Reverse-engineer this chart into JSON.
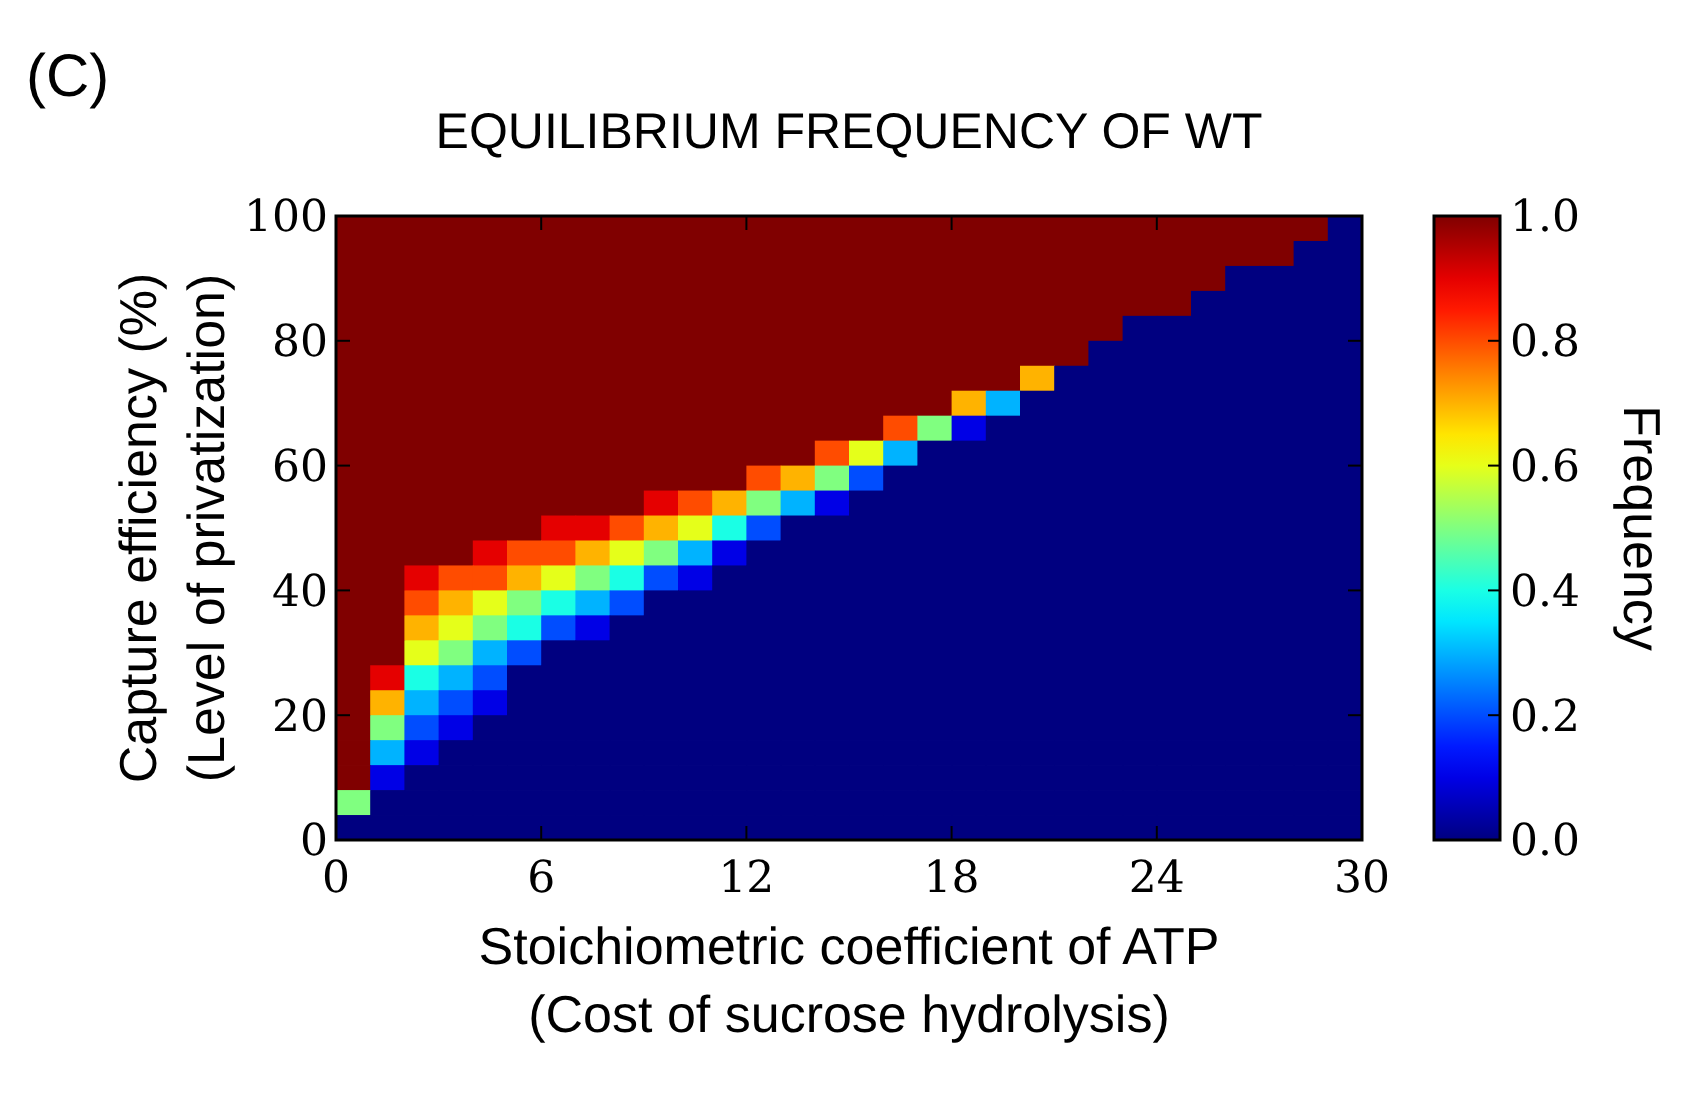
{
  "chart_data": {
    "type": "heatmap",
    "title": "EQUILIBRIUM FREQUENCY OF WT",
    "xlabel": "Stoichiometric coefficient of ATP\n(Cost of sucrose hydrolysis)",
    "ylabel": "Capture efficiency (%)\n(Level of privatization)",
    "clabel": "Frequency",
    "annotations": [
      "(C)"
    ],
    "x": [
      0.5,
      1.5,
      2.5,
      3.5,
      4.5,
      5.5,
      6.5,
      7.5,
      8.5,
      9.5,
      10.5,
      11.5,
      12.5,
      13.5,
      14.5,
      15.5,
      16.5,
      17.5,
      18.5,
      19.5,
      20.5,
      21.5,
      22.5,
      23.5,
      24.5,
      25.5,
      26.5,
      27.5,
      28.5,
      29.5
    ],
    "y": [
      98,
      94,
      90,
      86,
      82,
      78,
      74,
      70,
      66,
      62,
      58,
      54,
      50,
      46,
      42,
      38,
      34,
      30,
      26,
      22,
      18,
      14,
      10,
      6,
      2
    ],
    "xlim": [
      0,
      30
    ],
    "xticks": [
      0,
      6,
      12,
      18,
      24,
      30
    ],
    "ylim": [
      0,
      100
    ],
    "yticks": [
      0,
      20,
      40,
      60,
      80,
      100
    ],
    "clim": [
      0,
      1
    ],
    "cticks": [
      {
        "value": 0,
        "label": "0.0"
      },
      {
        "value": 0.2,
        "label": "0.2"
      },
      {
        "value": 0.4,
        "label": "0.4"
      },
      {
        "value": 0.6,
        "label": "0.6"
      },
      {
        "value": 0.8,
        "label": "0.8"
      },
      {
        "value": 1,
        "label": "1.0"
      }
    ],
    "cells": [
      [
        1,
        1,
        1,
        1,
        1,
        1,
        1,
        1,
        1,
        1,
        1,
        1,
        1,
        1,
        1,
        1,
        1,
        1,
        1,
        1,
        1,
        1,
        1,
        1,
        1,
        1,
        1,
        1,
        1,
        0
      ],
      [
        1,
        1,
        1,
        1,
        1,
        1,
        1,
        1,
        1,
        1,
        1,
        1,
        1,
        1,
        1,
        1,
        1,
        1,
        1,
        1,
        1,
        1,
        1,
        1,
        1,
        1,
        1,
        1,
        0,
        0
      ],
      [
        1,
        1,
        1,
        1,
        1,
        1,
        1,
        1,
        1,
        1,
        1,
        1,
        1,
        1,
        1,
        1,
        1,
        1,
        1,
        1,
        1,
        1,
        1,
        1,
        1,
        1,
        0,
        0,
        0,
        0
      ],
      [
        1,
        1,
        1,
        1,
        1,
        1,
        1,
        1,
        1,
        1,
        1,
        1,
        1,
        1,
        1,
        1,
        1,
        1,
        1,
        1,
        1,
        1,
        1,
        1,
        1,
        0,
        0,
        0,
        0,
        0
      ],
      [
        1,
        1,
        1,
        1,
        1,
        1,
        1,
        1,
        1,
        1,
        1,
        1,
        1,
        1,
        1,
        1,
        1,
        1,
        1,
        1,
        1,
        1,
        1,
        0,
        0,
        0,
        0,
        0,
        0,
        0
      ],
      [
        1,
        1,
        1,
        1,
        1,
        1,
        1,
        1,
        1,
        1,
        1,
        1,
        1,
        1,
        1,
        1,
        1,
        1,
        1,
        1,
        1,
        1,
        0,
        0,
        0,
        0,
        0,
        0,
        0,
        0
      ],
      [
        1,
        1,
        1,
        1,
        1,
        1,
        1,
        1,
        1,
        1,
        1,
        1,
        1,
        1,
        1,
        1,
        1,
        1,
        1,
        1,
        0.7,
        0,
        0,
        0,
        0,
        0,
        0,
        0,
        0,
        0
      ],
      [
        1,
        1,
        1,
        1,
        1,
        1,
        1,
        1,
        1,
        1,
        1,
        1,
        1,
        1,
        1,
        1,
        1,
        1,
        0.7,
        0.3,
        0,
        0,
        0,
        0,
        0,
        0,
        0,
        0,
        0,
        0
      ],
      [
        1,
        1,
        1,
        1,
        1,
        1,
        1,
        1,
        1,
        1,
        1,
        1,
        1,
        1,
        1,
        1,
        0.8,
        0.5,
        0.1,
        0,
        0,
        0,
        0,
        0,
        0,
        0,
        0,
        0,
        0,
        0
      ],
      [
        1,
        1,
        1,
        1,
        1,
        1,
        1,
        1,
        1,
        1,
        1,
        1,
        1,
        1,
        0.8,
        0.6,
        0.3,
        0,
        0,
        0,
        0,
        0,
        0,
        0,
        0,
        0,
        0,
        0,
        0,
        0
      ],
      [
        1,
        1,
        1,
        1,
        1,
        1,
        1,
        1,
        1,
        1,
        1,
        1,
        0.8,
        0.7,
        0.5,
        0.2,
        0,
        0,
        0,
        0,
        0,
        0,
        0,
        0,
        0,
        0,
        0,
        0,
        0,
        0
      ],
      [
        1,
        1,
        1,
        1,
        1,
        1,
        1,
        1,
        1,
        0.9,
        0.8,
        0.7,
        0.5,
        0.3,
        0.1,
        0,
        0,
        0,
        0,
        0,
        0,
        0,
        0,
        0,
        0,
        0,
        0,
        0,
        0,
        0
      ],
      [
        1,
        1,
        1,
        1,
        1,
        1,
        0.9,
        0.9,
        0.8,
        0.7,
        0.6,
        0.4,
        0.2,
        0,
        0,
        0,
        0,
        0,
        0,
        0,
        0,
        0,
        0,
        0,
        0,
        0,
        0,
        0,
        0,
        0
      ],
      [
        1,
        1,
        1,
        1,
        0.9,
        0.8,
        0.8,
        0.7,
        0.6,
        0.5,
        0.3,
        0.1,
        0,
        0,
        0,
        0,
        0,
        0,
        0,
        0,
        0,
        0,
        0,
        0,
        0,
        0,
        0,
        0,
        0,
        0
      ],
      [
        1,
        1,
        0.9,
        0.8,
        0.8,
        0.7,
        0.6,
        0.5,
        0.4,
        0.2,
        0.1,
        0,
        0,
        0,
        0,
        0,
        0,
        0,
        0,
        0,
        0,
        0,
        0,
        0,
        0,
        0,
        0,
        0,
        0,
        0
      ],
      [
        1,
        1,
        0.8,
        0.7,
        0.6,
        0.5,
        0.4,
        0.3,
        0.2,
        0,
        0,
        0,
        0,
        0,
        0,
        0,
        0,
        0,
        0,
        0,
        0,
        0,
        0,
        0,
        0,
        0,
        0,
        0,
        0,
        0
      ],
      [
        1,
        1,
        0.7,
        0.6,
        0.5,
        0.4,
        0.2,
        0.1,
        0,
        0,
        0,
        0,
        0,
        0,
        0,
        0,
        0,
        0,
        0,
        0,
        0,
        0,
        0,
        0,
        0,
        0,
        0,
        0,
        0,
        0
      ],
      [
        1,
        1,
        0.6,
        0.5,
        0.3,
        0.2,
        0,
        0,
        0,
        0,
        0,
        0,
        0,
        0,
        0,
        0,
        0,
        0,
        0,
        0,
        0,
        0,
        0,
        0,
        0,
        0,
        0,
        0,
        0,
        0
      ],
      [
        1,
        0.9,
        0.4,
        0.3,
        0.2,
        0,
        0,
        0,
        0,
        0,
        0,
        0,
        0,
        0,
        0,
        0,
        0,
        0,
        0,
        0,
        0,
        0,
        0,
        0,
        0,
        0,
        0,
        0,
        0,
        0
      ],
      [
        1,
        0.7,
        0.3,
        0.2,
        0.1,
        0,
        0,
        0,
        0,
        0,
        0,
        0,
        0,
        0,
        0,
        0,
        0,
        0,
        0,
        0,
        0,
        0,
        0,
        0,
        0,
        0,
        0,
        0,
        0,
        0
      ],
      [
        1,
        0.5,
        0.2,
        0.1,
        0,
        0,
        0,
        0,
        0,
        0,
        0,
        0,
        0,
        0,
        0,
        0,
        0,
        0,
        0,
        0,
        0,
        0,
        0,
        0,
        0,
        0,
        0,
        0,
        0,
        0
      ],
      [
        1,
        0.3,
        0.1,
        0,
        0,
        0,
        0,
        0,
        0,
        0,
        0,
        0,
        0,
        0,
        0,
        0,
        0,
        0,
        0,
        0,
        0,
        0,
        0,
        0,
        0,
        0,
        0,
        0,
        0,
        0
      ],
      [
        1,
        0.1,
        0,
        0,
        0,
        0,
        0,
        0,
        0,
        0,
        0,
        0,
        0,
        0,
        0,
        0,
        0,
        0,
        0,
        0,
        0,
        0,
        0,
        0,
        0,
        0,
        0,
        0,
        0,
        0
      ],
      [
        0.5,
        0,
        0,
        0,
        0,
        0,
        0,
        0,
        0,
        0,
        0,
        0,
        0,
        0,
        0,
        0,
        0,
        0,
        0,
        0,
        0,
        0,
        0,
        0,
        0,
        0,
        0,
        0,
        0,
        0
      ],
      [
        0,
        0,
        0,
        0,
        0,
        0,
        0,
        0,
        0,
        0,
        0,
        0,
        0,
        0,
        0,
        0,
        0,
        0,
        0,
        0,
        0,
        0,
        0,
        0,
        0,
        0,
        0,
        0,
        0,
        0
      ]
    ]
  }
}
